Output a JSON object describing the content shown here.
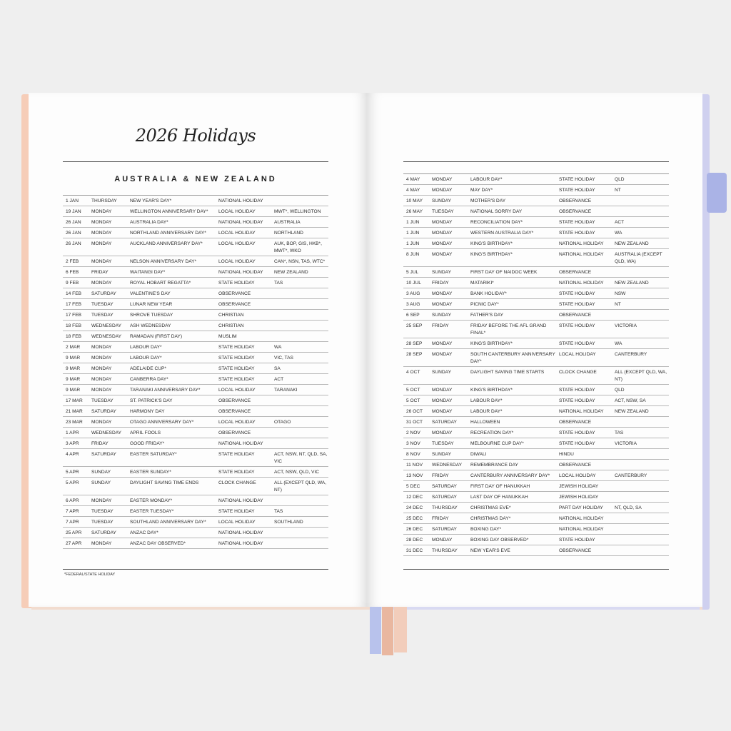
{
  "title": "2026 Holidays",
  "region_heading": "AUSTRALIA & NEW ZEALAND",
  "footnote": "*FEDERAL/STATE HOLIDAY",
  "colors": {
    "cover_left": "#f6cdb8",
    "cover_right": "#cfd0ef",
    "tab": "#aab3e6",
    "ribbon_blue": "#b8c2ec",
    "ribbon_peach": "#e9b7a0"
  },
  "left_rows": [
    [
      "1 JAN",
      "THURSDAY",
      "NEW YEAR'S DAY*",
      "NATIONAL HOLIDAY",
      ""
    ],
    [
      "19 JAN",
      "MONDAY",
      "WELLINGTON ANNIVERSARY DAY*",
      "LOCAL HOLIDAY",
      "MWT*, WELLINGTON"
    ],
    [
      "26 JAN",
      "MONDAY",
      "AUSTRALIA DAY*",
      "NATIONAL HOLIDAY",
      "AUSTRALIA"
    ],
    [
      "26 JAN",
      "MONDAY",
      "NORTHLAND ANNIVERSARY DAY*",
      "LOCAL HOLIDAY",
      "NORTHLAND"
    ],
    [
      "26 JAN",
      "MONDAY",
      "AUCKLAND ANNIVERSARY DAY*",
      "LOCAL HOLIDAY",
      "AUK, BOP, GIS, HKB*, MWT*, WKO"
    ],
    [
      "2 FEB",
      "MONDAY",
      "NELSON ANNIVERSARY DAY*",
      "LOCAL HOLIDAY",
      "CAN*, NSN, TAS, WTC*"
    ],
    [
      "6 FEB",
      "FRIDAY",
      "WAITANGI DAY*",
      "NATIONAL HOLIDAY",
      "NEW ZEALAND"
    ],
    [
      "9 FEB",
      "MONDAY",
      "ROYAL HOBART REGATTA*",
      "STATE HOLIDAY",
      "TAS"
    ],
    [
      "14 FEB",
      "SATURDAY",
      "VALENTINE'S DAY",
      "OBSERVANCE",
      ""
    ],
    [
      "17 FEB",
      "TUESDAY",
      "LUNAR NEW YEAR",
      "OBSERVANCE",
      ""
    ],
    [
      "17 FEB",
      "TUESDAY",
      "SHROVE TUESDAY",
      "CHRISTIAN",
      ""
    ],
    [
      "18 FEB",
      "WEDNESDAY",
      "ASH WEDNESDAY",
      "CHRISTIAN",
      ""
    ],
    [
      "18 FEB",
      "WEDNESDAY",
      "RAMADAN (FIRST DAY)",
      "MUSLIM",
      ""
    ],
    [
      "2 MAR",
      "MONDAY",
      "LABOUR DAY*",
      "STATE HOLIDAY",
      "WA"
    ],
    [
      "9 MAR",
      "MONDAY",
      "LABOUR DAY*",
      "STATE HOLIDAY",
      "VIC, TAS"
    ],
    [
      "9 MAR",
      "MONDAY",
      "ADELAIDE CUP*",
      "STATE HOLIDAY",
      "SA"
    ],
    [
      "9 MAR",
      "MONDAY",
      "CANBERRA DAY*",
      "STATE HOLIDAY",
      "ACT"
    ],
    [
      "9 MAR",
      "MONDAY",
      "TARANAKI ANNIVERSARY DAY*",
      "LOCAL HOLIDAY",
      "TARANAKI"
    ],
    [
      "17 MAR",
      "TUESDAY",
      "ST. PATRICK'S DAY",
      "OBSERVANCE",
      ""
    ],
    [
      "21 MAR",
      "SATURDAY",
      "HARMONY DAY",
      "OBSERVANCE",
      ""
    ],
    [
      "23 MAR",
      "MONDAY",
      "OTAGO ANNIVERSARY DAY*",
      "LOCAL HOLIDAY",
      "OTAGO"
    ],
    [
      "1 APR",
      "WEDNESDAY",
      "APRIL FOOLS",
      "OBSERVANCE",
      ""
    ],
    [
      "3 APR",
      "FRIDAY",
      "GOOD FRIDAY*",
      "NATIONAL HOLIDAY",
      ""
    ],
    [
      "4 APR",
      "SATURDAY",
      "EASTER SATURDAY*",
      "STATE HOLIDAY",
      "ACT, NSW, NT, QLD, SA, VIC"
    ],
    [
      "5 APR",
      "SUNDAY",
      "EASTER SUNDAY*",
      "STATE HOLIDAY",
      "ACT, NSW, QLD, VIC"
    ],
    [
      "5 APR",
      "SUNDAY",
      "DAYLIGHT SAVING TIME ENDS",
      "CLOCK CHANGE",
      "ALL (EXCEPT QLD, WA, NT)"
    ],
    [
      "6 APR",
      "MONDAY",
      "EASTER MONDAY*",
      "NATIONAL HOLIDAY",
      ""
    ],
    [
      "7 APR",
      "TUESDAY",
      "EASTER TUESDAY*",
      "STATE HOLIDAY",
      "TAS"
    ],
    [
      "7 APR",
      "TUESDAY",
      "SOUTHLAND ANNIVERSARY DAY*",
      "LOCAL HOLIDAY",
      "SOUTHLAND"
    ],
    [
      "25 APR",
      "SATURDAY",
      "ANZAC DAY*",
      "NATIONAL HOLIDAY",
      ""
    ],
    [
      "27 APR",
      "MONDAY",
      "ANZAC DAY OBSERVED*",
      "NATIONAL HOLIDAY",
      ""
    ]
  ],
  "right_rows": [
    [
      "4 MAY",
      "MONDAY",
      "LABOUR DAY*",
      "STATE HOLIDAY",
      "QLD"
    ],
    [
      "4 MAY",
      "MONDAY",
      "MAY DAY*",
      "STATE HOLIDAY",
      "NT"
    ],
    [
      "10 MAY",
      "SUNDAY",
      "MOTHER'S DAY",
      "OBSERVANCE",
      ""
    ],
    [
      "26 MAY",
      "TUESDAY",
      "NATIONAL SORRY DAY",
      "OBSERVANCE",
      ""
    ],
    [
      "1 JUN",
      "MONDAY",
      "RECONCILIATION DAY*",
      "STATE HOLIDAY",
      "ACT"
    ],
    [
      "1 JUN",
      "MONDAY",
      "WESTERN AUSTRALIA DAY*",
      "STATE HOLIDAY",
      "WA"
    ],
    [
      "1 JUN",
      "MONDAY",
      "KING'S BIRTHDAY*",
      "NATIONAL HOLIDAY",
      "NEW ZEALAND"
    ],
    [
      "8 JUN",
      "MONDAY",
      "KING'S BIRTHDAY*",
      "NATIONAL HOLIDAY",
      "AUSTRALIA (EXCEPT QLD, WA)"
    ],
    [
      "5 JUL",
      "SUNDAY",
      "FIRST DAY OF NAIDOC WEEK",
      "OBSERVANCE",
      ""
    ],
    [
      "10 JUL",
      "FRIDAY",
      "MATARIKI*",
      "NATIONAL HOLIDAY",
      "NEW ZEALAND"
    ],
    [
      "3 AUG",
      "MONDAY",
      "BANK HOLIDAY*",
      "STATE HOLIDAY",
      "NSW"
    ],
    [
      "3 AUG",
      "MONDAY",
      "PICNIC DAY*",
      "STATE HOLIDAY",
      "NT"
    ],
    [
      "6 SEP",
      "SUNDAY",
      "FATHER'S DAY",
      "OBSERVANCE",
      ""
    ],
    [
      "25 SEP",
      "FRIDAY",
      "FRIDAY BEFORE THE AFL GRAND FINAL*",
      "STATE HOLIDAY",
      "VICTORIA"
    ],
    [
      "28 SEP",
      "MONDAY",
      "KING'S BIRTHDAY*",
      "STATE HOLIDAY",
      "WA"
    ],
    [
      "28 SEP",
      "MONDAY",
      "SOUTH CANTERBURY ANNIVERSARY DAY*",
      "LOCAL HOLIDAY",
      "CANTERBURY"
    ],
    [
      "4 OCT",
      "SUNDAY",
      "DAYLIGHT SAVING TIME STARTS",
      "CLOCK CHANGE",
      "ALL (EXCEPT QLD, WA, NT)"
    ],
    [
      "5 OCT",
      "MONDAY",
      "KING'S BIRTHDAY*",
      "STATE HOLIDAY",
      "QLD"
    ],
    [
      "5 OCT",
      "MONDAY",
      "LABOUR DAY*",
      "STATE HOLIDAY",
      "ACT, NSW, SA"
    ],
    [
      "26 OCT",
      "MONDAY",
      "LABOUR DAY*",
      "NATIONAL HOLIDAY",
      "NEW ZEALAND"
    ],
    [
      "31 OCT",
      "SATURDAY",
      "HALLOWEEN",
      "OBSERVANCE",
      ""
    ],
    [
      "2 NOV",
      "MONDAY",
      "RECREATION DAY*",
      "STATE HOLIDAY",
      "TAS"
    ],
    [
      "3 NOV",
      "TUESDAY",
      "MELBOURNE CUP DAY*",
      "STATE HOLIDAY",
      "VICTORIA"
    ],
    [
      "8 NOV",
      "SUNDAY",
      "DIWALI",
      "HINDU",
      ""
    ],
    [
      "11 NOV",
      "WEDNESDAY",
      "REMEMBRANCE DAY",
      "OBSERVANCE",
      ""
    ],
    [
      "13 NOV",
      "FRIDAY",
      "CANTERBURY ANNIVERSARY DAY*",
      "LOCAL HOLIDAY",
      "CANTERBURY"
    ],
    [
      "5 DEC",
      "SATURDAY",
      "FIRST DAY OF HANUKKAH",
      "JEWISH HOLIDAY",
      ""
    ],
    [
      "12 DEC",
      "SATURDAY",
      "LAST DAY OF HANUKKAH",
      "JEWISH HOLIDAY",
      ""
    ],
    [
      "24 DEC",
      "THURSDAY",
      "CHRISTMAS EVE*",
      "PART DAY HOLIDAY",
      "NT, QLD, SA"
    ],
    [
      "25 DEC",
      "FRIDAY",
      "CHRISTMAS DAY*",
      "NATIONAL HOLIDAY",
      ""
    ],
    [
      "26 DEC",
      "SATURDAY",
      "BOXING DAY*",
      "NATIONAL HOLIDAY",
      ""
    ],
    [
      "28 DEC",
      "MONDAY",
      "BOXING DAY OBSERVED*",
      "STATE HOLIDAY",
      ""
    ],
    [
      "31 DEC",
      "THURSDAY",
      "NEW YEAR'S EVE",
      "OBSERVANCE",
      ""
    ]
  ]
}
